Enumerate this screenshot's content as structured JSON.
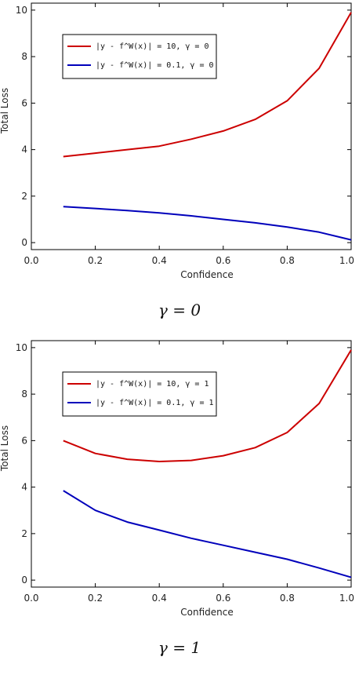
{
  "chart_data": [
    {
      "type": "line",
      "caption": "γ = 0",
      "xlabel": "Confidence",
      "ylabel": "Total Loss",
      "xlim": [
        0,
        1
      ],
      "ylim": [
        -0.3,
        10.3
      ],
      "xticks": [
        "0.0",
        "0.2",
        "0.4",
        "0.6",
        "0.8",
        "1.0"
      ],
      "yticks": [
        "0",
        "2",
        "4",
        "6",
        "8",
        "10"
      ],
      "legend": "top-left",
      "x": [
        0.1,
        0.2,
        0.3,
        0.4,
        0.5,
        0.6,
        0.7,
        0.8,
        0.9,
        1.0
      ],
      "series": [
        {
          "name": "|y - f^W(x)| = 10,  γ = 0",
          "color": "#cc0000",
          "values": [
            3.7,
            3.85,
            4.0,
            4.15,
            4.45,
            4.8,
            5.3,
            6.1,
            7.5,
            9.9
          ]
        },
        {
          "name": "|y - f^W(x)| = 0.1,  γ = 0",
          "color": "#0000bb",
          "values": [
            1.55,
            1.47,
            1.38,
            1.28,
            1.15,
            1.0,
            0.85,
            0.67,
            0.45,
            0.12
          ]
        }
      ]
    },
    {
      "type": "line",
      "caption": "γ = 1",
      "xlabel": "Confidence",
      "ylabel": "Total Loss",
      "xlim": [
        0,
        1
      ],
      "ylim": [
        -0.3,
        10.3
      ],
      "xticks": [
        "0.0",
        "0.2",
        "0.4",
        "0.6",
        "0.8",
        "1.0"
      ],
      "yticks": [
        "0",
        "2",
        "4",
        "6",
        "8",
        "10"
      ],
      "legend": "top-left",
      "x": [
        0.1,
        0.2,
        0.3,
        0.4,
        0.5,
        0.6,
        0.7,
        0.8,
        0.9,
        1.0
      ],
      "series": [
        {
          "name": "|y - f^W(x)| = 10,  γ = 1",
          "color": "#cc0000",
          "values": [
            6.0,
            5.45,
            5.2,
            5.1,
            5.15,
            5.35,
            5.7,
            6.35,
            7.6,
            9.9
          ]
        },
        {
          "name": "|y - f^W(x)| = 0.1,  γ = 1",
          "color": "#0000bb",
          "values": [
            3.85,
            3.0,
            2.5,
            2.15,
            1.8,
            1.5,
            1.2,
            0.9,
            0.52,
            0.12
          ]
        }
      ]
    }
  ]
}
